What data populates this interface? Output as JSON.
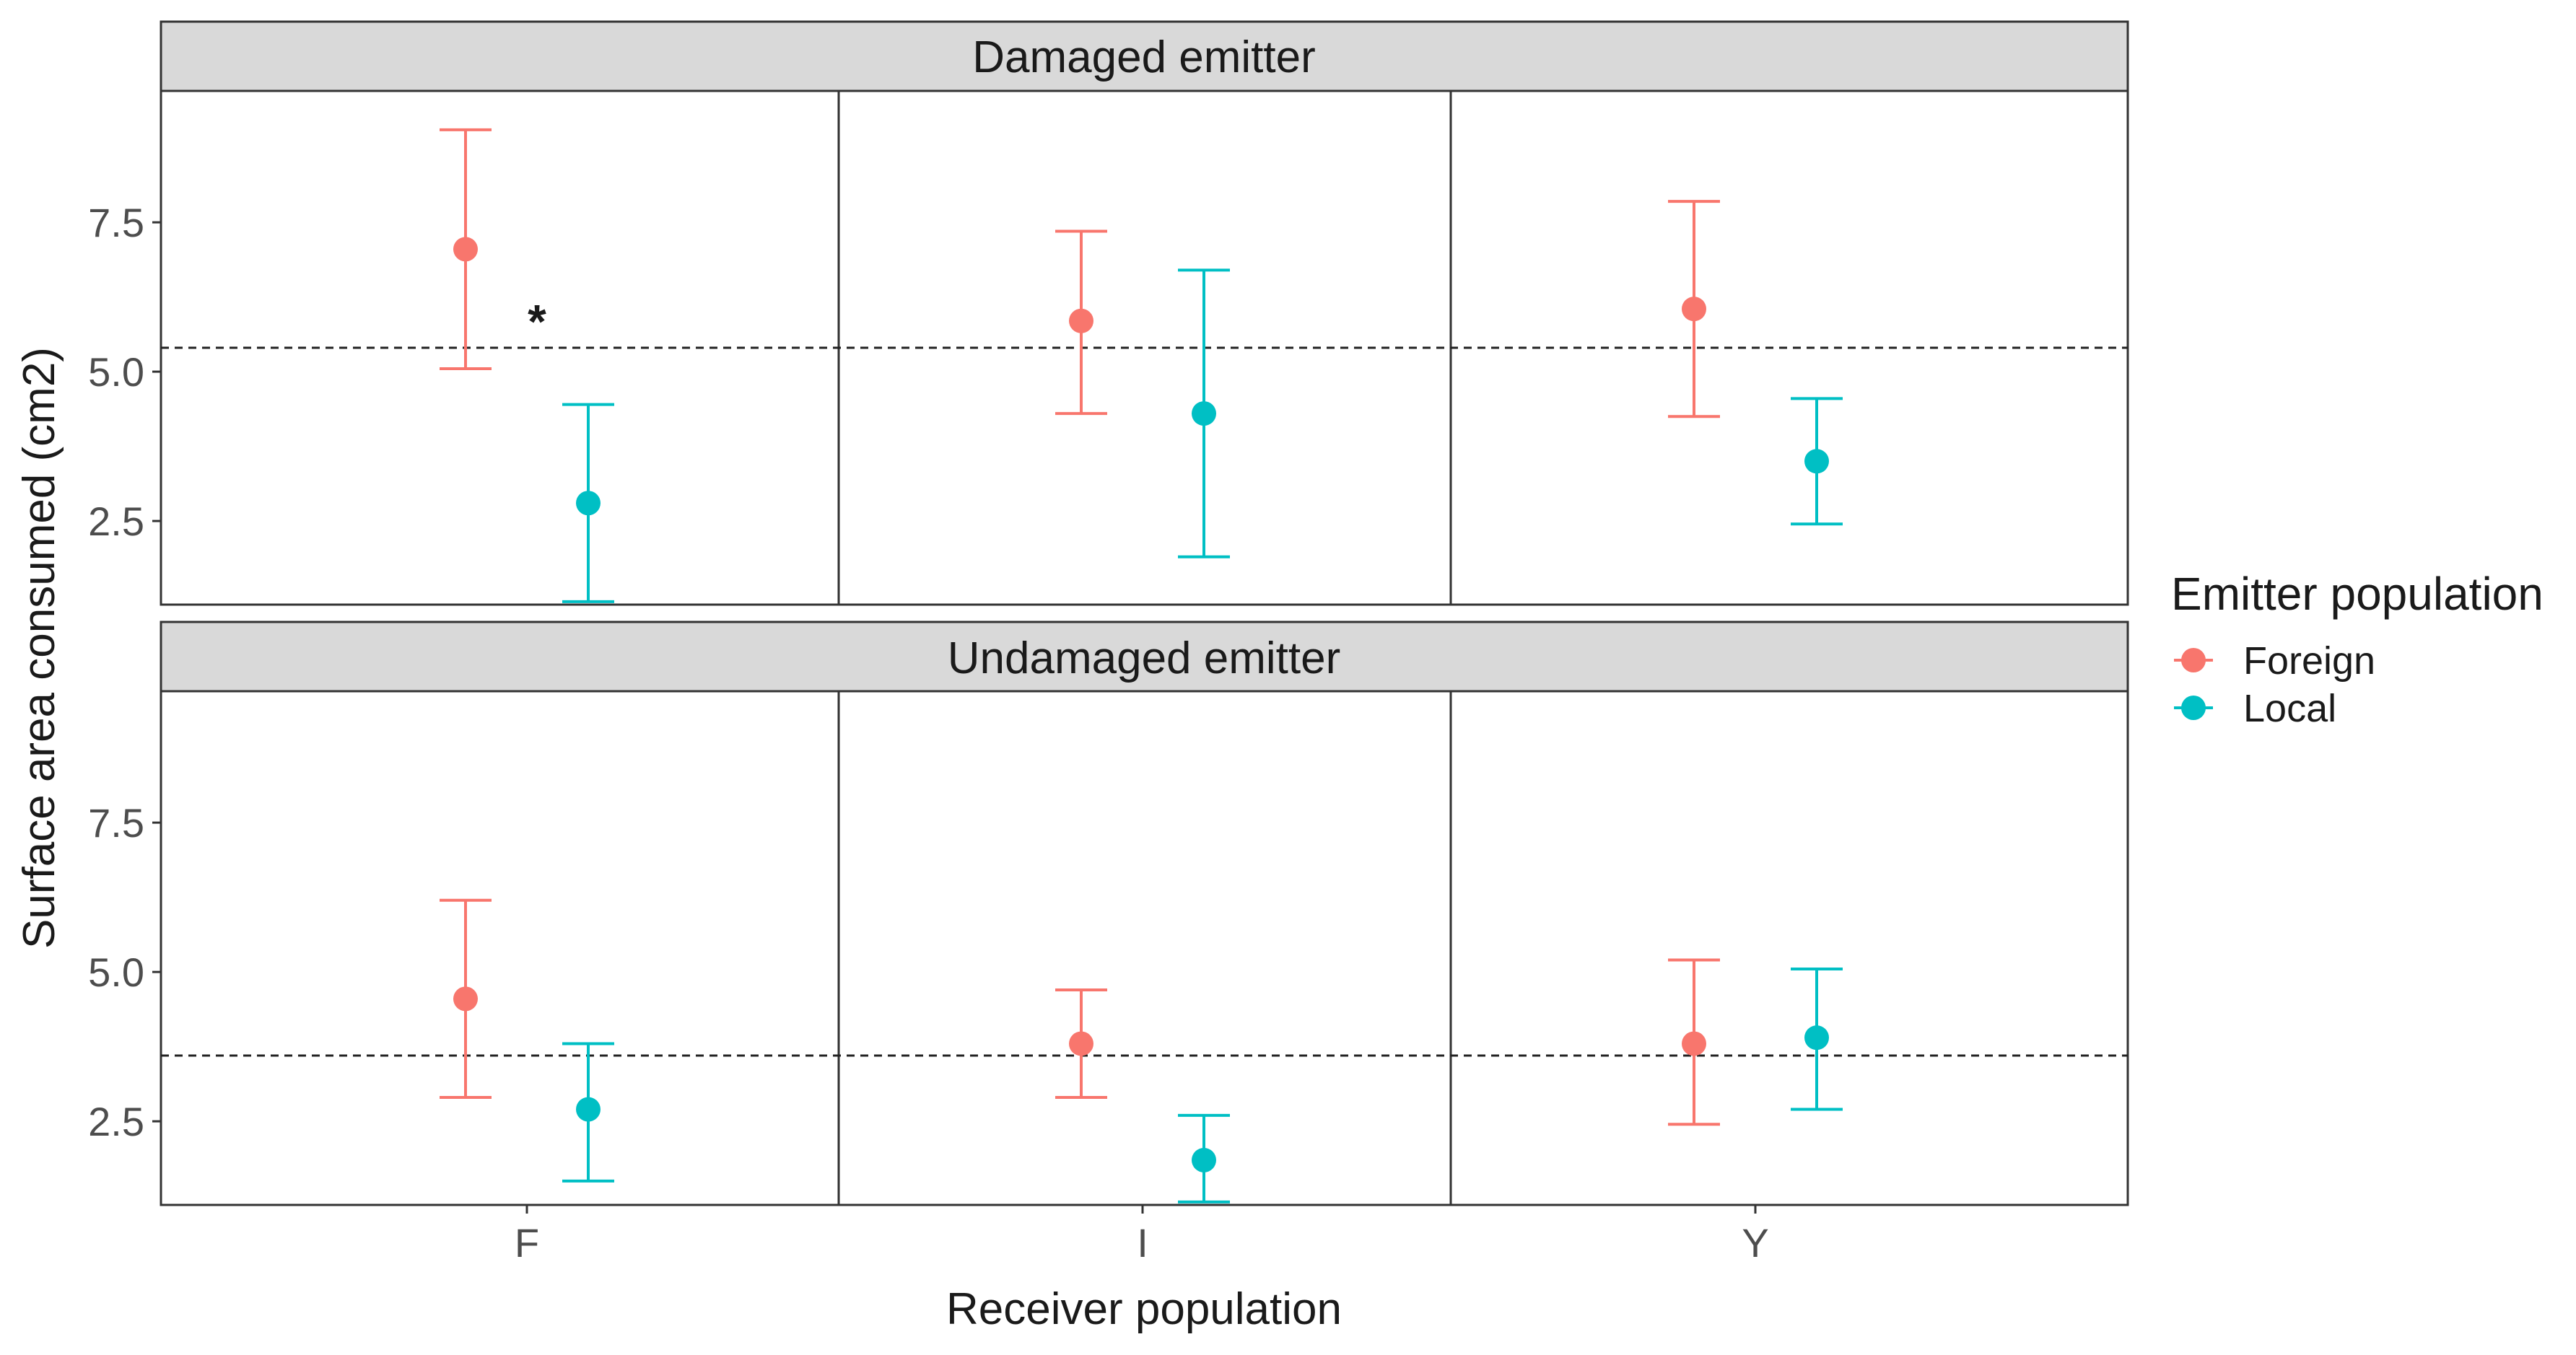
{
  "chart_data": {
    "type": "scatter",
    "subtype": "faceted point-range (mean with error bars)",
    "xlabel": "Receiver population",
    "ylabel": "Surface area consumed (cm2)",
    "categories": [
      "F",
      "I",
      "Y"
    ],
    "ylim": [
      1.1,
      9.7
    ],
    "yticks": [
      2.5,
      5.0,
      7.5
    ],
    "ytick_labels": [
      "2.5",
      "5.0",
      "7.5"
    ],
    "legend": {
      "title": "Emitter population",
      "position": "right",
      "entries": [
        {
          "name": "Foreign",
          "color": "#F8766D"
        },
        {
          "name": "Local",
          "color": "#00BFC4"
        }
      ]
    },
    "grid": false,
    "facets": [
      {
        "strip": "Damaged emitter",
        "reference_line": 5.4,
        "annotations": [
          {
            "text": "*",
            "category": "F"
          }
        ],
        "series": [
          {
            "name": "Foreign",
            "mean": [
              7.05,
              5.85,
              6.05
            ],
            "lower": [
              5.05,
              4.3,
              4.25
            ],
            "upper": [
              9.05,
              7.35,
              7.85
            ]
          },
          {
            "name": "Local",
            "mean": [
              2.8,
              4.3,
              3.5
            ],
            "lower": [
              1.15,
              1.9,
              2.45
            ],
            "upper": [
              4.45,
              6.7,
              4.55
            ]
          }
        ]
      },
      {
        "strip": "Undamaged emitter",
        "reference_line": 3.6,
        "annotations": [],
        "series": [
          {
            "name": "Foreign",
            "mean": [
              4.55,
              3.8,
              3.8
            ],
            "lower": [
              2.9,
              2.9,
              2.45
            ],
            "upper": [
              6.2,
              4.7,
              5.2
            ]
          },
          {
            "name": "Local",
            "mean": [
              2.7,
              1.85,
              3.9
            ],
            "lower": [
              1.5,
              1.15,
              2.7
            ],
            "upper": [
              3.8,
              2.6,
              5.05
            ]
          }
        ]
      }
    ]
  }
}
